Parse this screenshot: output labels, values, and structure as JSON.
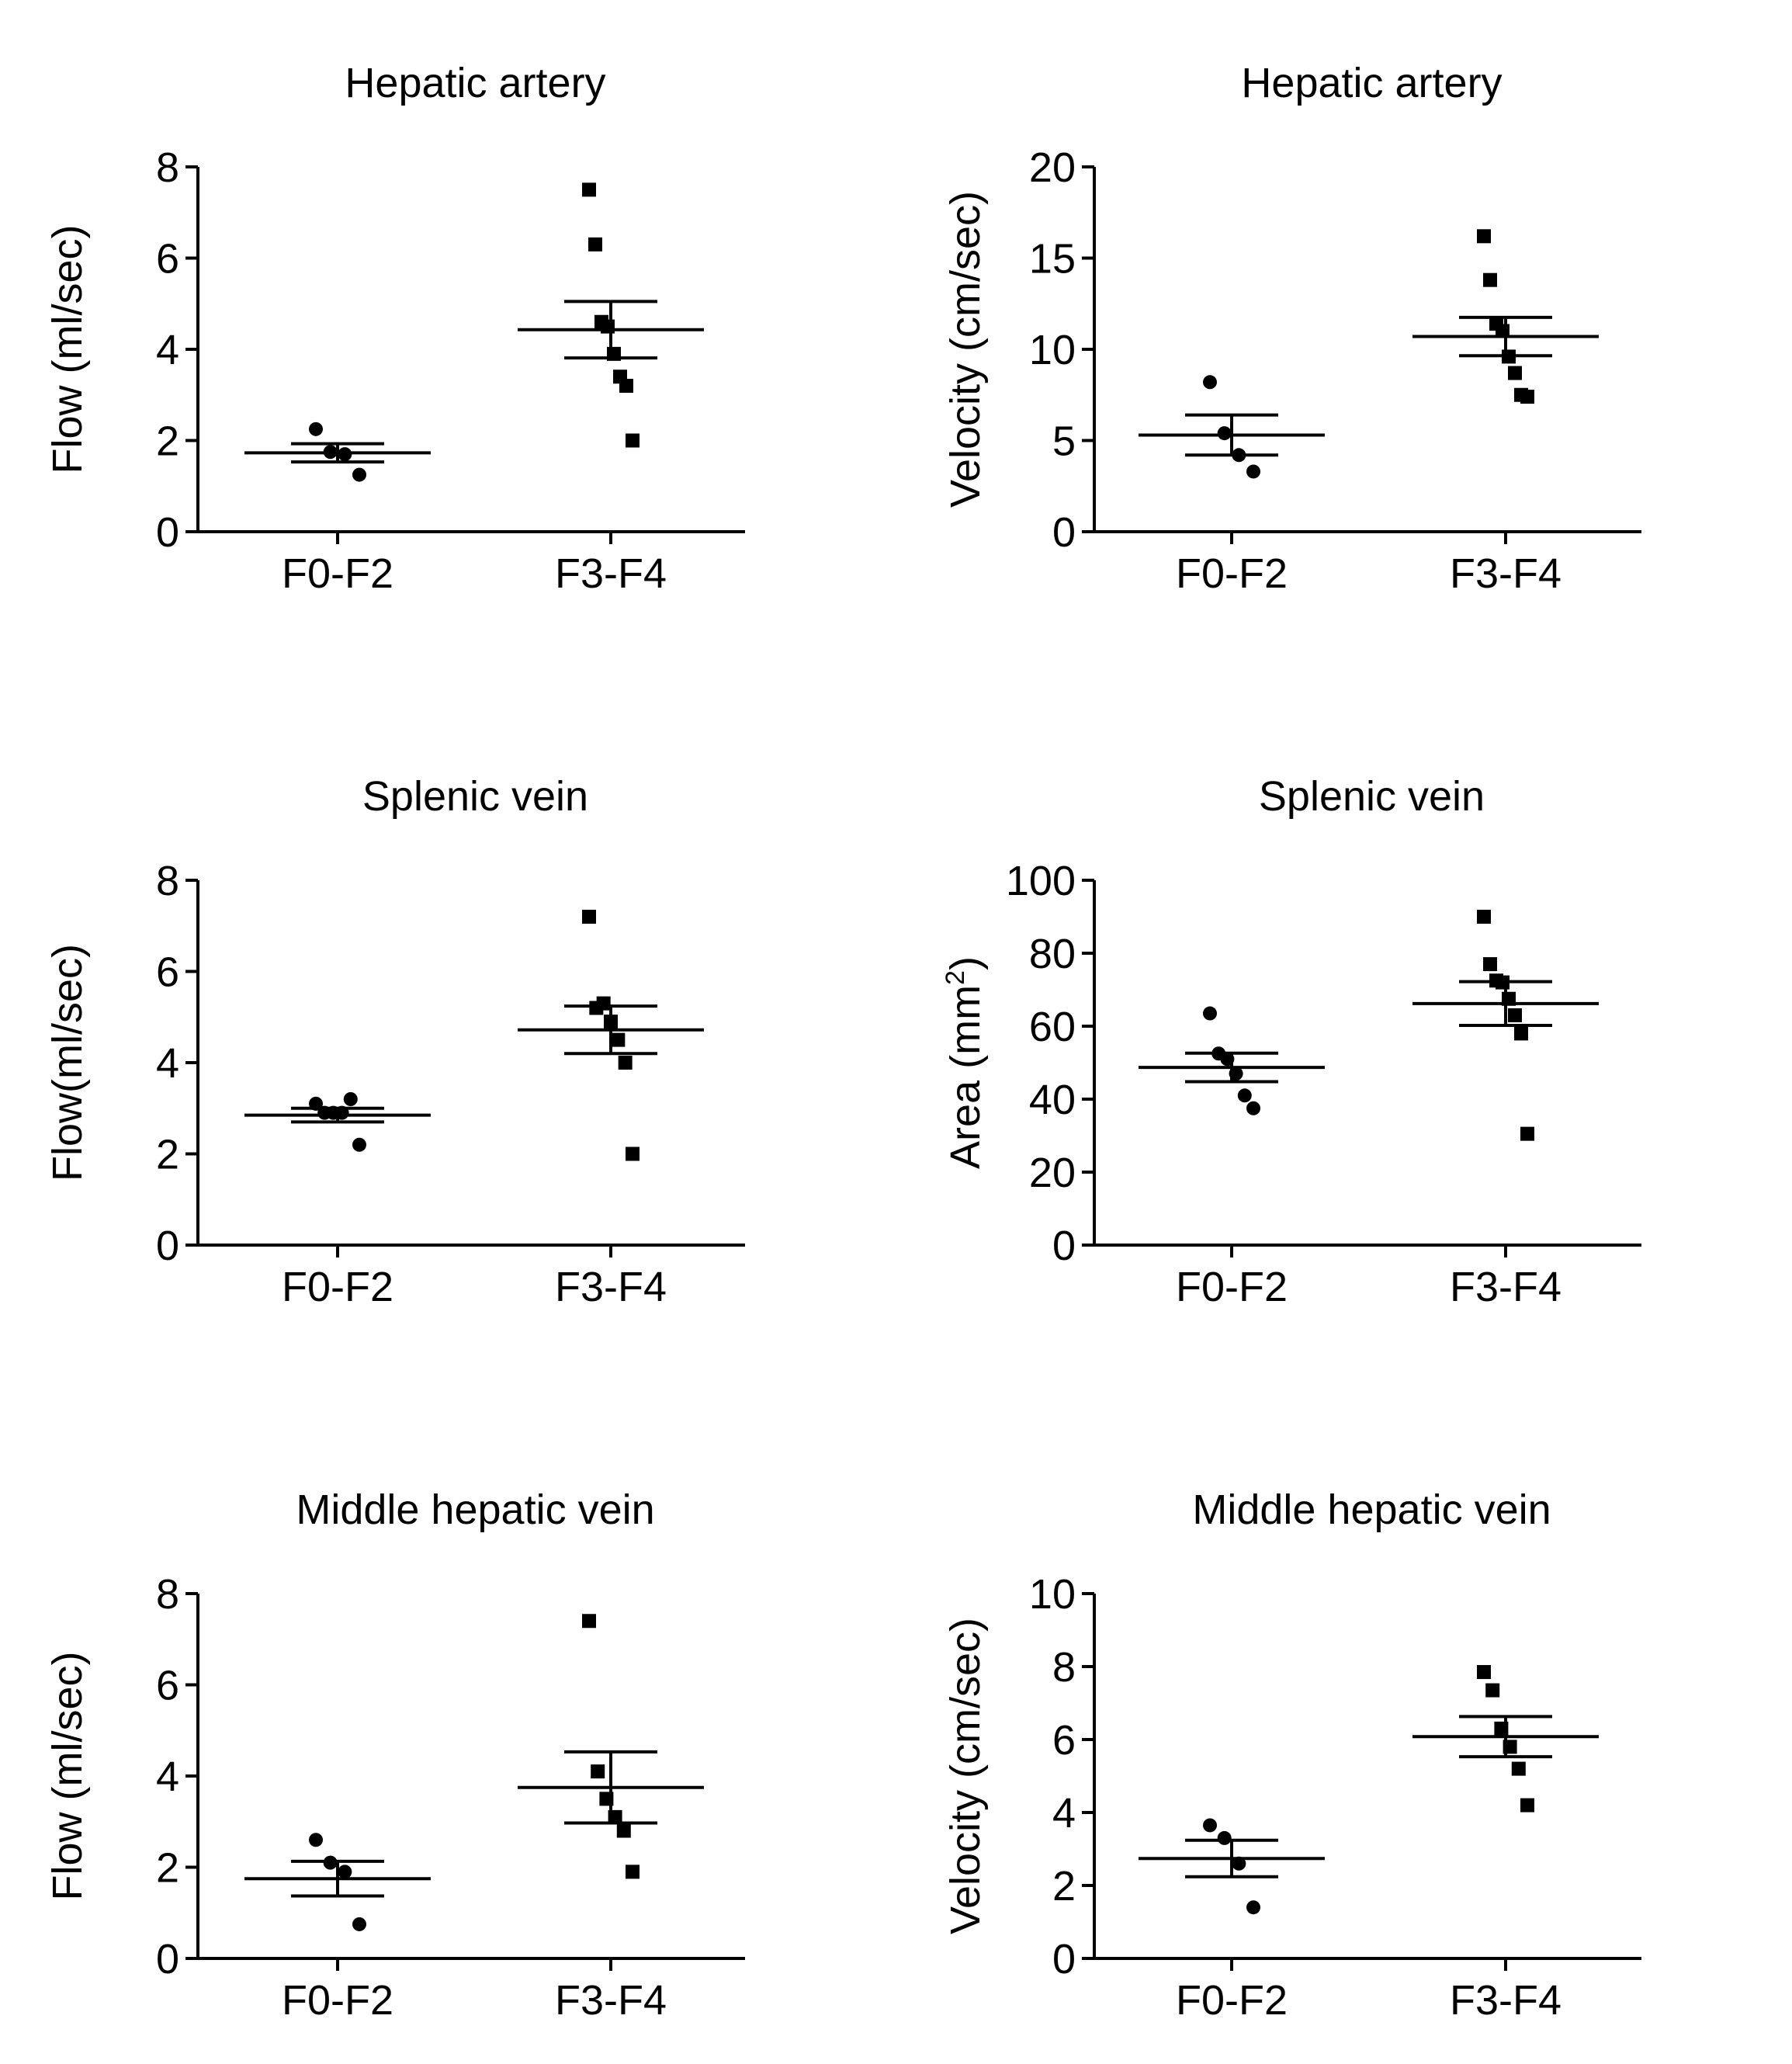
{
  "chart_data": [
    {
      "type": "scatter",
      "title": "Hepatic artery",
      "xlabel": "",
      "ylabel": "Flow (ml/sec)",
      "ylim": [
        0,
        8
      ],
      "yticks": [
        0,
        2,
        4,
        6,
        8
      ],
      "grid": false,
      "categories": [
        "F0-F2",
        "F3-F4"
      ],
      "series": [
        {
          "name": "F0-F2",
          "marker": "circle",
          "values": [
            2.25,
            1.75,
            1.7,
            1.25
          ],
          "mean": 1.73,
          "sem": 0.2
        },
        {
          "name": "F3-F4",
          "marker": "square",
          "values": [
            7.5,
            6.3,
            4.6,
            4.5,
            3.9,
            3.4,
            3.2,
            2.0
          ],
          "mean": 4.43,
          "sem": 0.62
        }
      ]
    },
    {
      "type": "scatter",
      "title": "Hepatic artery",
      "xlabel": "",
      "ylabel": "Velocity (cm/sec)",
      "ylim": [
        0,
        20
      ],
      "yticks": [
        0,
        5,
        10,
        15,
        20
      ],
      "grid": false,
      "categories": [
        "F0-F2",
        "F3-F4"
      ],
      "series": [
        {
          "name": "F0-F2",
          "marker": "circle",
          "values": [
            8.2,
            5.4,
            4.2,
            3.3
          ],
          "mean": 5.3,
          "sem": 1.1
        },
        {
          "name": "F3-F4",
          "marker": "square",
          "values": [
            16.2,
            13.8,
            11.4,
            11.0,
            9.6,
            8.7,
            7.5,
            7.4
          ],
          "mean": 10.7,
          "sem": 1.05
        }
      ]
    },
    {
      "type": "scatter",
      "title": "Splenic vein",
      "xlabel": "",
      "ylabel": "Flow(ml/sec)",
      "ylim": [
        0,
        8
      ],
      "yticks": [
        0,
        2,
        4,
        6,
        8
      ],
      "grid": false,
      "categories": [
        "F0-F2",
        "F3-F4"
      ],
      "series": [
        {
          "name": "F0-F2",
          "marker": "circle",
          "values": [
            3.1,
            2.9,
            2.9,
            2.9,
            3.2,
            2.2
          ],
          "mean": 2.85,
          "sem": 0.15
        },
        {
          "name": "F3-F4",
          "marker": "square",
          "values": [
            7.2,
            5.2,
            5.3,
            4.9,
            4.5,
            4.0,
            2.0
          ],
          "mean": 4.72,
          "sem": 0.52
        }
      ]
    },
    {
      "type": "scatter",
      "title": "Splenic vein",
      "xlabel": "",
      "ylabel": "Area (mm",
      "ylabel_superscript": "2",
      "ylabel_suffix": ")",
      "ylim": [
        0,
        100
      ],
      "yticks": [
        0,
        20,
        40,
        60,
        80,
        100
      ],
      "grid": false,
      "categories": [
        "F0-F2",
        "F3-F4"
      ],
      "series": [
        {
          "name": "F0-F2",
          "marker": "circle",
          "values": [
            63.5,
            52.5,
            51.0,
            47.0,
            41.0,
            37.5
          ],
          "mean": 48.7,
          "sem": 3.9
        },
        {
          "name": "F3-F4",
          "marker": "square",
          "values": [
            90.0,
            77.0,
            72.5,
            72.0,
            67.5,
            63.0,
            58.0,
            30.5
          ],
          "mean": 66.2,
          "sem": 6.0
        }
      ]
    },
    {
      "type": "scatter",
      "title": "Middle hepatic vein",
      "xlabel": "",
      "ylabel": "Flow (ml/sec)",
      "ylim": [
        0,
        8
      ],
      "yticks": [
        0,
        2,
        4,
        6,
        8
      ],
      "grid": false,
      "categories": [
        "F0-F2",
        "F3-F4"
      ],
      "series": [
        {
          "name": "F0-F2",
          "marker": "circle",
          "values": [
            2.6,
            2.1,
            1.9,
            0.75
          ],
          "mean": 1.75,
          "sem": 0.38
        },
        {
          "name": "F3-F4",
          "marker": "square",
          "values": [
            7.4,
            4.1,
            3.5,
            3.1,
            2.8,
            1.9
          ],
          "mean": 3.75,
          "sem": 0.78
        }
      ]
    },
    {
      "type": "scatter",
      "title": "Middle hepatic vein",
      "xlabel": "",
      "ylabel": "Velocity (cm/sec)",
      "ylim": [
        0,
        10
      ],
      "yticks": [
        0,
        2,
        4,
        6,
        8,
        10
      ],
      "grid": false,
      "categories": [
        "F0-F2",
        "F3-F4"
      ],
      "series": [
        {
          "name": "F0-F2",
          "marker": "circle",
          "values": [
            3.65,
            3.3,
            2.6,
            1.4
          ],
          "mean": 2.74,
          "sem": 0.5
        },
        {
          "name": "F3-F4",
          "marker": "square",
          "values": [
            7.85,
            7.35,
            6.3,
            5.8,
            5.2,
            4.2
          ],
          "mean": 6.08,
          "sem": 0.55
        }
      ]
    }
  ]
}
